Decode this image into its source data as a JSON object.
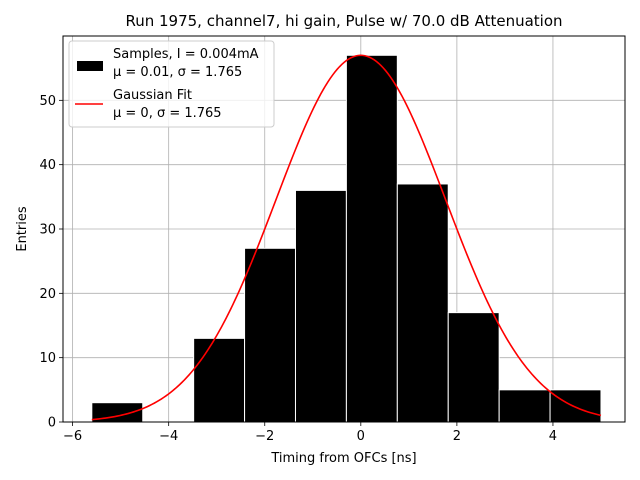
{
  "chart_data": {
    "type": "bar",
    "title": "Run 1975, channel7, hi gain, Pulse w/ 70.0 dB Attenuation",
    "xlabel": "Timing from OFCs [ns]",
    "ylabel": "Entries",
    "xlim": [
      -6.2,
      5.5
    ],
    "ylim": [
      0,
      60
    ],
    "xticks": [
      -6,
      -4,
      -2,
      0,
      2,
      4
    ],
    "yticks": [
      0,
      10,
      20,
      30,
      40,
      50
    ],
    "grid": true,
    "legend_position": "top-left",
    "histogram": {
      "bin_edges": [
        -5.6,
        -4.54,
        -3.48,
        -2.42,
        -1.36,
        -0.3,
        0.76,
        1.82,
        2.88,
        3.94,
        5.0
      ],
      "counts": [
        3,
        0,
        13,
        27,
        36,
        57,
        37,
        17,
        5,
        5
      ],
      "color": "#000000",
      "edgecolor": "#ffffff",
      "legend_line1": "Samples, I = 0.004mA",
      "legend_line2": "μ = 0.01, σ = 1.765"
    },
    "fit": {
      "mu": 0,
      "sigma": 1.765,
      "amplitude": 57,
      "x_range": [
        -5.6,
        5.0
      ],
      "color": "#ff0000",
      "legend_line1": "Gaussian Fit",
      "legend_line2": "μ = 0, σ = 1.765"
    }
  }
}
